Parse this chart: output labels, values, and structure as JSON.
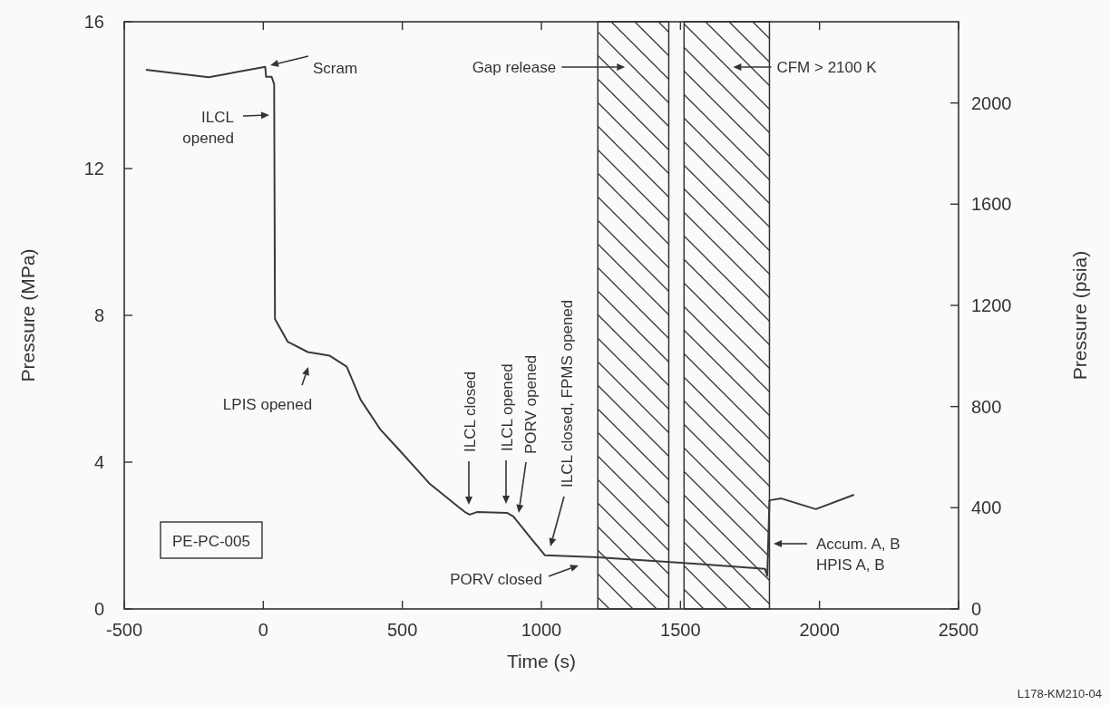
{
  "chart_data": {
    "type": "line",
    "xlabel": "Time (s)",
    "ylabel": "Pressure (MPa)",
    "y2label": "Pressure (psia)",
    "xlim": [
      -500,
      2500
    ],
    "xticks": [
      -500,
      0,
      500,
      1000,
      1500,
      2000,
      2500
    ],
    "ylim": [
      0,
      16
    ],
    "yticks": [
      0,
      4,
      8,
      12,
      16
    ],
    "y2lim": [
      0,
      2321
    ],
    "y2ticks": [
      0,
      400,
      800,
      1200,
      1600,
      2000
    ],
    "series": [
      {
        "color": "#3a3a3a",
        "x": [
          -422,
          -196,
          7,
          10,
          30,
          39,
          42,
          88,
          160,
          239,
          300,
          350,
          420,
          490,
          600,
          725,
          742,
          768,
          876,
          899,
          960,
          1013,
          1203,
          1500,
          1804,
          1812,
          1820,
          1863,
          1987,
          2124
        ],
        "values": [
          14.69,
          14.49,
          14.77,
          14.5,
          14.5,
          14.3,
          7.9,
          7.28,
          7.0,
          6.9,
          6.6,
          5.7,
          4.9,
          4.32,
          3.4,
          2.64,
          2.57,
          2.64,
          2.62,
          2.52,
          1.95,
          1.46,
          1.41,
          1.26,
          1.09,
          0.9,
          2.96,
          3.01,
          2.72,
          3.11
        ]
      }
    ],
    "bands": [
      {
        "axis": "x",
        "from": 1203,
        "to": 1458,
        "label": "Gap release"
      },
      {
        "axis": "x",
        "from": 1513,
        "to": 1820,
        "label": "CFM > 2100 K"
      }
    ],
    "annotations": [
      "Scram",
      "ILCL\nopened",
      "LPIS opened",
      "ILCL closed",
      "ILCL opened",
      "PORV opened",
      "ILCL closed, FPMS opened",
      "PORV closed",
      "Accum. A, B\nHPIS A, B",
      "PE-PC-005",
      "L178-KM210-04"
    ]
  }
}
